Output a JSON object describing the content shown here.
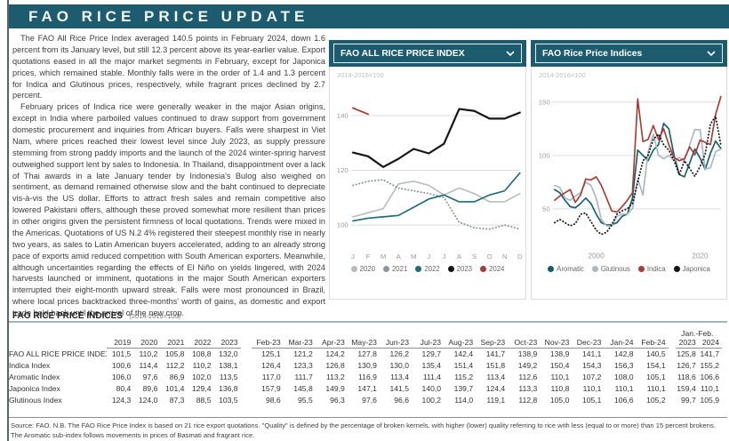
{
  "page": {
    "title": "FAO RICE PRICE UPDATE"
  },
  "article": {
    "paragraphs": [
      "The FAO All Rice Price Index averaged 140.5 points in February 2024, down 1.6 percent from its January level, but still 12.3 percent above its year-earlier value. Export quotations eased in all the major market segments in February, except for Japonica prices, which remained stable. Monthly falls were in the order of 1.4 and 1.3 percent for Indica and Glutinous prices, respectively, while fragrant prices declined by 2.7 percent.",
      "February prices of Indica rice were generally weaker in the major Asian origins, except in India where parboiled values continued to draw support from government domestic procurement and inquiries from African buyers. Falls were sharpest in Viet Nam, where prices reached their lowest level since July 2023, as supply pressure stemming from strong paddy imports and the launch of the 2024 winter-spring harvest outweighed support lent by sales to Indonesia. In Thailand, disappointment over a lack of Thai awards in a late January tender by Indonesia's Bulog also weighed on sentiment, as demand remained otherwise slow and the baht continued to depreciate vis-à-vis the US dollar. Efforts to attract fresh sales and remain competitive also lowered Pakistani offers, although these proved somewhat more resilient than prices in other origins given the persistent firmness of local quotations. Trends were mixed in the Americas. Quotations of US N.2 4% registered their steepest monthly rise in nearly two years, as sales to Latin American buyers accelerated, adding to an already strong pace of exports amid reduced competition with South American exporters. Meanwhile, although uncertainties regarding the effects of El Niño on yields lingered, with 2024 harvests launched or imminent, quotations in the major South American exporters interrupted their eight-month upward streak. Falls were most pronounced in Brazil, where local prices backtracked three-months' worth of gains, as domestic and export trade held back until the arrival of the new crop."
    ]
  },
  "chart_data": [
    {
      "type": "line",
      "title": "FAO ALL RICE PRICE INDEX",
      "subtitle": "2014-2016=100",
      "categories": [
        "J",
        "F",
        "M",
        "A",
        "M",
        "J",
        "J",
        "A",
        "S",
        "O",
        "N",
        "D"
      ],
      "ylim": [
        92,
        150
      ],
      "yticks": [
        100,
        120,
        140
      ],
      "grid": true,
      "legend_position": "bottom",
      "series": [
        {
          "name": "2020",
          "color": "#b5babc",
          "style": "solid",
          "width": 1.5,
          "values": [
            103,
            104.5,
            106,
            115,
            116,
            114.5,
            111,
            113.5,
            111.5,
            108.5,
            108.5,
            111.5
          ]
        },
        {
          "name": "2021",
          "color": "#8d969c",
          "style": "dotted",
          "width": 1.7,
          "values": [
            114.5,
            116,
            116.5,
            113.5,
            112.5,
            111.5,
            110,
            101,
            99,
            98.5,
            100,
            98.5
          ]
        },
        {
          "name": "2022",
          "color": "#1f6b7a",
          "style": "solid",
          "width": 1.6,
          "values": [
            101.5,
            102.5,
            103,
            103.5,
            106.5,
            109.5,
            111,
            108.5,
            108.5,
            111,
            112.5,
            119
          ]
        },
        {
          "name": "2023",
          "color": "#151515",
          "style": "solid",
          "width": 2.1,
          "values": [
            126.5,
            125.1,
            121.2,
            124.2,
            127.8,
            126.2,
            129.7,
            142.4,
            141.7,
            138.9,
            138.9,
            141.1
          ]
        },
        {
          "name": "2024",
          "color": "#a93c32",
          "style": "solid",
          "width": 1.7,
          "values": [
            142.8,
            140.5
          ]
        }
      ]
    },
    {
      "type": "line",
      "title": "FAO Rice Price Indices",
      "subtitle": "2014-2016=100",
      "x": [
        1992,
        1993,
        1994,
        1995,
        1996,
        1997,
        1998,
        1999,
        2000,
        2001,
        2002,
        2003,
        2004,
        2005,
        2006,
        2007,
        2008,
        2009,
        2010,
        2011,
        2012,
        2013,
        2014,
        2015,
        2016,
        2017,
        2018,
        2019,
        2020,
        2021,
        2022,
        2023,
        2024
      ],
      "xticks": [
        {
          "index": 8,
          "label": "2000"
        },
        {
          "index": 28,
          "label": "2020"
        }
      ],
      "ylim": [
        15,
        163
      ],
      "yticks": [
        50,
        100,
        150
      ],
      "grid": true,
      "legend_position": "bottom",
      "series": [
        {
          "name": "Aromatic",
          "color": "#155f6b",
          "style": "solid",
          "width": 1.6,
          "values": [
            68,
            65,
            58,
            52,
            51,
            55,
            60,
            55,
            45,
            37,
            35,
            35,
            37,
            43,
            45,
            60,
            105,
            100,
            95,
            105,
            110,
            130,
            125,
            100,
            82,
            80,
            93,
            106,
            97.6,
            86.9,
            102,
            113.5,
            106.6
          ]
        },
        {
          "name": "Glutinous",
          "color": "#a9b7c0",
          "style": "solid",
          "width": 1.6,
          "values": [
            72,
            70,
            60,
            58,
            62,
            65,
            75,
            72,
            60,
            40,
            34,
            34,
            43,
            45,
            45,
            50,
            78,
            63,
            103,
            120,
            100,
            97,
            100,
            95,
            98,
            95,
            110,
            124.3,
            124,
            87.3,
            88.5,
            103.5,
            105.9
          ]
        },
        {
          "name": "Indica",
          "color": "#a93c32",
          "style": "solid",
          "width": 1.6,
          "values": [
            58,
            62,
            65,
            68,
            56,
            63,
            78,
            77,
            80,
            72,
            60,
            48,
            47,
            52,
            58,
            65,
            153,
            113,
            115,
            128,
            115,
            125,
            110,
            98,
            95,
            97,
            108,
            100.6,
            114.4,
            112.2,
            110.2,
            138.1,
            155.2
          ]
        },
        {
          "name": "Japonica",
          "color": "#151515",
          "style": "dotted",
          "width": 1.7,
          "values": [
            37,
            40,
            37,
            34,
            36,
            45,
            46,
            38,
            30,
            26,
            28,
            35,
            45,
            48,
            50,
            55,
            75,
            95,
            100,
            115,
            120,
            110,
            105,
            95,
            82,
            95,
            88,
            80.4,
            89.6,
            101.4,
            129.4,
            136.8,
            110.1
          ]
        }
      ]
    }
  ],
  "table": {
    "title": "FAO RICE PRICE INDICES",
    "title_note": "(2014-2016=100)",
    "annual_headers": [
      "2019",
      "2020",
      "2021",
      "2022",
      "2023"
    ],
    "monthly_headers": [
      "Feb-23",
      "Mar-23",
      "Apr-23",
      "May-23",
      "Jun-23",
      "Jul-23",
      "Aug-23",
      "Sep-23",
      "Oct-23",
      "Nov-23",
      "Dec-23",
      "Jan-24",
      "Feb-24"
    ],
    "janfeb_label": "Jan.-Feb.",
    "janfeb_headers": [
      "2023",
      "2024"
    ],
    "rows": [
      {
        "label": "FAO ALL RICE PRICE INDEX",
        "annual": [
          "101,5",
          "110,2",
          "105,8",
          "108,8",
          "132,0"
        ],
        "monthly": [
          "125,1",
          "121,2",
          "124,2",
          "127,8",
          "126,2",
          "129,7",
          "142,4",
          "141,7",
          "138,9",
          "138,9",
          "141,1",
          "142,8",
          "140,5"
        ],
        "janfeb": [
          "125,8",
          "141,7"
        ]
      },
      {
        "label": "Indica Index",
        "annual": [
          "100,6",
          "114,4",
          "112,2",
          "110,2",
          "138,1"
        ],
        "monthly": [
          "126,4",
          "123,3",
          "126,8",
          "130,9",
          "130,0",
          "135,4",
          "151,4",
          "151,8",
          "149,2",
          "150,4",
          "154,3",
          "156,3",
          "154,1"
        ],
        "janfeb": [
          "126,7",
          "155,2"
        ]
      },
      {
        "label": "Aromatic Index",
        "annual": [
          "106,0",
          "97,6",
          "86,9",
          "102,0",
          "113,5"
        ],
        "monthly": [
          "117,0",
          "111,7",
          "113,2",
          "116,9",
          "113,4",
          "111,4",
          "115,2",
          "113,4",
          "112,6",
          "110,1",
          "107,2",
          "108,0",
          "105,1"
        ],
        "janfeb": [
          "118,6",
          "106,6"
        ]
      },
      {
        "label": "Japonica Index",
        "annual": [
          "80,4",
          "89,6",
          "101,4",
          "129,4",
          "136,8"
        ],
        "monthly": [
          "157,9",
          "145,8",
          "149,9",
          "147,1",
          "141,5",
          "140,0",
          "139,7",
          "124,4",
          "113,3",
          "110,8",
          "110,1",
          "110,1",
          "110,1"
        ],
        "janfeb": [
          "159,4",
          "110,1"
        ]
      },
      {
        "label": "Glutinous Index",
        "annual": [
          "124,3",
          "124,0",
          "87,3",
          "88,5",
          "103,5"
        ],
        "monthly": [
          "98,6",
          "95,5",
          "96,3",
          "97,6",
          "96,6",
          "100,2",
          "114,0",
          "119,1",
          "112,8",
          "105,0",
          "105,1",
          "106,6",
          "105,2"
        ],
        "janfeb": [
          "99,7",
          "105,9"
        ]
      }
    ]
  },
  "footnote": "Source: FAO.  N.B. The FAO Rice Price Index is based on 21 rice export quotations. \"Quality\" is defined by the percentage of broken kernels, with higher (lower) quality referring to rice with less (equal to or more) than 15 percent brokens. The Aromatic sub-index follows movements in prices of Basmati and fragrant rice."
}
